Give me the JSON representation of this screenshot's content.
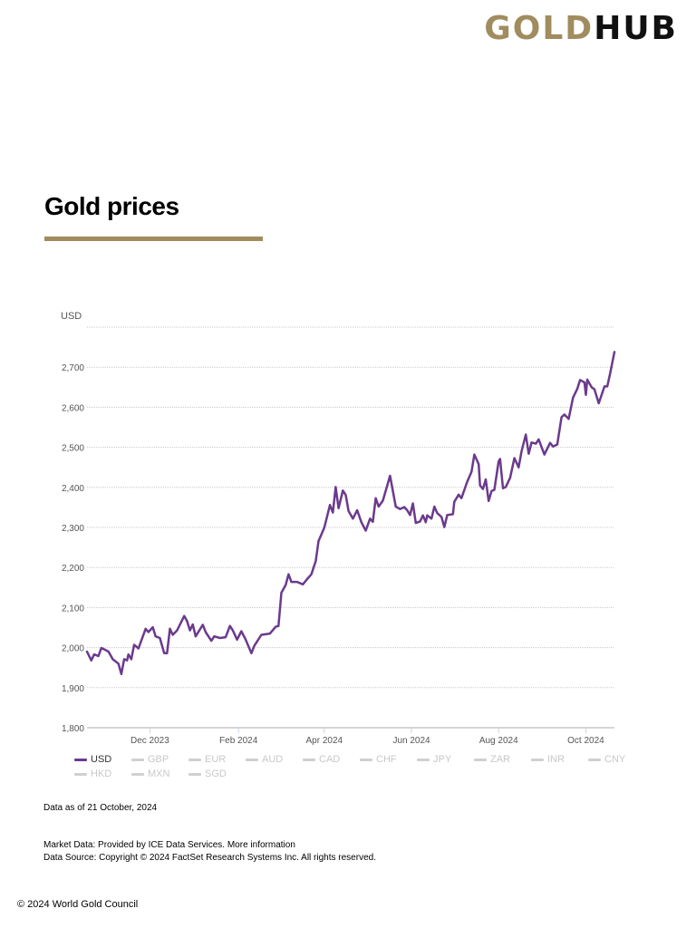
{
  "logo": {
    "part1": "GOLD",
    "part2": "HUB"
  },
  "title": "Gold prices",
  "colors": {
    "accent": "#a08c5f",
    "series": "#6b3a8c",
    "inactive": "#d0d0d0"
  },
  "chart_data": {
    "type": "line",
    "ylabel": "USD",
    "ylim": [
      1800,
      2800
    ],
    "yticks": [
      1800,
      1900,
      2000,
      2100,
      2200,
      2300,
      2400,
      2500,
      2600,
      2700,
      2800
    ],
    "ytick_labels": [
      "1,800",
      "1,900",
      "2,000",
      "2,100",
      "2,200",
      "2,300",
      "2,400",
      "2,500",
      "2,600",
      "2,700",
      ""
    ],
    "xlim": [
      "2023-10-18",
      "2024-10-21"
    ],
    "xticks": [
      {
        "date": "2023-12-01",
        "label": "Dec 2023"
      },
      {
        "date": "2024-02-01",
        "label": "Feb 2024"
      },
      {
        "date": "2024-04-01",
        "label": "Apr 2024"
      },
      {
        "date": "2024-06-01",
        "label": "Jun 2024"
      },
      {
        "date": "2024-08-01",
        "label": "Aug 2024"
      },
      {
        "date": "2024-10-01",
        "label": "Oct 2024"
      }
    ],
    "grid": true,
    "legend_position": "bottom",
    "series": [
      {
        "name": "USD",
        "color": "#6b3a8c",
        "points": [
          [
            "2023-10-18",
            1990
          ],
          [
            "2023-10-21",
            1968
          ],
          [
            "2023-10-23",
            1983
          ],
          [
            "2023-10-26",
            1979
          ],
          [
            "2023-10-28",
            1999
          ],
          [
            "2023-10-31",
            1994
          ],
          [
            "2023-11-02",
            1990
          ],
          [
            "2023-11-05",
            1971
          ],
          [
            "2023-11-09",
            1960
          ],
          [
            "2023-11-11",
            1934
          ],
          [
            "2023-11-13",
            1971
          ],
          [
            "2023-11-15",
            1968
          ],
          [
            "2023-11-16",
            1983
          ],
          [
            "2023-11-18",
            1971
          ],
          [
            "2023-11-20",
            2007
          ],
          [
            "2023-11-23",
            1998
          ],
          [
            "2023-11-28",
            2047
          ],
          [
            "2023-11-30",
            2039
          ],
          [
            "2023-12-03",
            2051
          ],
          [
            "2023-12-05",
            2028
          ],
          [
            "2023-12-08",
            2024
          ],
          [
            "2023-12-11",
            1986
          ],
          [
            "2023-12-13",
            1986
          ],
          [
            "2023-12-15",
            2047
          ],
          [
            "2023-12-17",
            2032
          ],
          [
            "2023-12-20",
            2043
          ],
          [
            "2023-12-25",
            2079
          ],
          [
            "2023-12-27",
            2066
          ],
          [
            "2023-12-29",
            2043
          ],
          [
            "2023-12-31",
            2058
          ],
          [
            "2024-01-02",
            2028
          ],
          [
            "2024-01-07",
            2057
          ],
          [
            "2024-01-09",
            2039
          ],
          [
            "2024-01-13",
            2017
          ],
          [
            "2024-01-15",
            2028
          ],
          [
            "2024-01-19",
            2024
          ],
          [
            "2024-01-23",
            2026
          ],
          [
            "2024-01-26",
            2054
          ],
          [
            "2024-01-28",
            2043
          ],
          [
            "2024-01-31",
            2020
          ],
          [
            "2024-02-03",
            2041
          ],
          [
            "2024-02-06",
            2020
          ],
          [
            "2024-02-10",
            1986
          ],
          [
            "2024-02-12",
            2004
          ],
          [
            "2024-02-17",
            2032
          ],
          [
            "2024-02-23",
            2035
          ],
          [
            "2024-02-27",
            2052
          ],
          [
            "2024-02-29",
            2054
          ],
          [
            "2024-03-02",
            2137
          ],
          [
            "2024-03-05",
            2156
          ],
          [
            "2024-03-07",
            2183
          ],
          [
            "2024-03-09",
            2164
          ],
          [
            "2024-03-13",
            2164
          ],
          [
            "2024-03-17",
            2158
          ],
          [
            "2024-03-20",
            2171
          ],
          [
            "2024-03-23",
            2183
          ],
          [
            "2024-03-26",
            2216
          ],
          [
            "2024-03-28",
            2266
          ],
          [
            "2024-04-01",
            2299
          ],
          [
            "2024-04-05",
            2356
          ],
          [
            "2024-04-07",
            2337
          ],
          [
            "2024-04-09",
            2401
          ],
          [
            "2024-04-11",
            2348
          ],
          [
            "2024-04-14",
            2392
          ],
          [
            "2024-04-16",
            2381
          ],
          [
            "2024-04-18",
            2341
          ],
          [
            "2024-04-21",
            2322
          ],
          [
            "2024-04-24",
            2343
          ],
          [
            "2024-04-27",
            2313
          ],
          [
            "2024-04-30",
            2292
          ],
          [
            "2024-05-03",
            2322
          ],
          [
            "2024-05-05",
            2314
          ],
          [
            "2024-05-07",
            2373
          ],
          [
            "2024-05-09",
            2352
          ],
          [
            "2024-05-12",
            2367
          ],
          [
            "2024-05-17",
            2429
          ],
          [
            "2024-05-21",
            2352
          ],
          [
            "2024-05-24",
            2346
          ],
          [
            "2024-05-27",
            2351
          ],
          [
            "2024-05-29",
            2343
          ],
          [
            "2024-05-31",
            2331
          ],
          [
            "2024-06-02",
            2360
          ],
          [
            "2024-06-04",
            2311
          ],
          [
            "2024-06-07",
            2315
          ],
          [
            "2024-06-09",
            2330
          ],
          [
            "2024-06-11",
            2313
          ],
          [
            "2024-06-12",
            2330
          ],
          [
            "2024-06-15",
            2322
          ],
          [
            "2024-06-17",
            2352
          ],
          [
            "2024-06-19",
            2336
          ],
          [
            "2024-06-22",
            2326
          ],
          [
            "2024-06-24",
            2301
          ],
          [
            "2024-06-26",
            2331
          ],
          [
            "2024-06-30",
            2333
          ],
          [
            "2024-07-01",
            2364
          ],
          [
            "2024-07-04",
            2382
          ],
          [
            "2024-07-06",
            2373
          ],
          [
            "2024-07-10",
            2414
          ],
          [
            "2024-07-13",
            2439
          ],
          [
            "2024-07-15",
            2482
          ],
          [
            "2024-07-18",
            2458
          ],
          [
            "2024-07-19",
            2405
          ],
          [
            "2024-07-21",
            2396
          ],
          [
            "2024-07-23",
            2420
          ],
          [
            "2024-07-25",
            2366
          ],
          [
            "2024-07-27",
            2391
          ],
          [
            "2024-07-29",
            2394
          ],
          [
            "2024-08-01",
            2465
          ],
          [
            "2024-08-02",
            2471
          ],
          [
            "2024-08-04",
            2398
          ],
          [
            "2024-08-06",
            2401
          ],
          [
            "2024-08-09",
            2424
          ],
          [
            "2024-08-12",
            2473
          ],
          [
            "2024-08-15",
            2450
          ],
          [
            "2024-08-17",
            2490
          ],
          [
            "2024-08-20",
            2532
          ],
          [
            "2024-08-22",
            2484
          ],
          [
            "2024-08-24",
            2512
          ],
          [
            "2024-08-27",
            2509
          ],
          [
            "2024-08-29",
            2520
          ],
          [
            "2024-09-02",
            2482
          ],
          [
            "2024-09-06",
            2511
          ],
          [
            "2024-09-08",
            2502
          ],
          [
            "2024-09-11",
            2507
          ],
          [
            "2024-09-14",
            2575
          ],
          [
            "2024-09-16",
            2582
          ],
          [
            "2024-09-19",
            2571
          ],
          [
            "2024-09-22",
            2624
          ],
          [
            "2024-09-25",
            2646
          ],
          [
            "2024-09-27",
            2668
          ],
          [
            "2024-09-30",
            2662
          ],
          [
            "2024-10-01",
            2631
          ],
          [
            "2024-10-02",
            2669
          ],
          [
            "2024-10-05",
            2650
          ],
          [
            "2024-10-07",
            2645
          ],
          [
            "2024-10-10",
            2610
          ],
          [
            "2024-10-14",
            2652
          ],
          [
            "2024-10-16",
            2652
          ],
          [
            "2024-10-18",
            2685
          ],
          [
            "2024-10-21",
            2738
          ]
        ]
      }
    ]
  },
  "legend": {
    "items": [
      {
        "label": "USD",
        "active": true
      },
      {
        "label": "GBP",
        "active": false
      },
      {
        "label": "EUR",
        "active": false
      },
      {
        "label": "AUD",
        "active": false
      },
      {
        "label": "CAD",
        "active": false
      },
      {
        "label": "CHF",
        "active": false
      },
      {
        "label": "JPY",
        "active": false
      },
      {
        "label": "ZAR",
        "active": false
      },
      {
        "label": "INR",
        "active": false
      },
      {
        "label": "CNY",
        "active": false
      },
      {
        "label": "HKD",
        "active": false
      },
      {
        "label": "MXN",
        "active": false
      },
      {
        "label": "SGD",
        "active": false
      }
    ]
  },
  "footer": {
    "data_as_of": "Data as of 21 October, 2024",
    "market_data": "Market Data: Provided by ICE Data Services. More information",
    "data_source": "Data Source: Copyright © 2024 FactSet Research Systems Inc. All rights reserved.",
    "copyright": "© 2024 World Gold Council"
  }
}
